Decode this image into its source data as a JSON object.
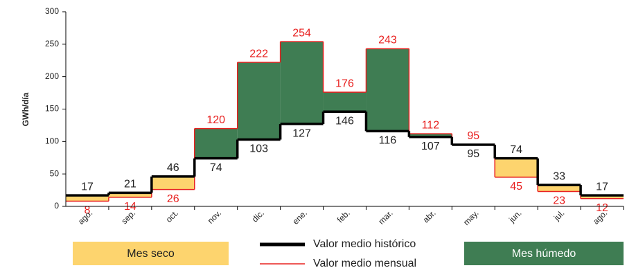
{
  "chart_data": {
    "type": "step",
    "y_label": "GWh/día",
    "categories": [
      "ago.",
      "sep.",
      "oct.",
      "nov.",
      "dic.",
      "ene.",
      "feb.",
      "mar.",
      "abr.",
      "may.",
      "jun.",
      "jul.",
      "ago."
    ],
    "series": [
      {
        "name": "Valor medio histórico",
        "color": "#000000",
        "values": [
          17,
          21,
          46,
          74,
          103,
          127,
          146,
          116,
          107,
          95,
          74,
          33,
          17
        ]
      },
      {
        "name": "Valor medio mensual",
        "color": "#e8201f",
        "values": [
          8,
          14,
          26,
          120,
          222,
          254,
          176,
          243,
          112,
          95,
          45,
          23,
          12
        ]
      }
    ],
    "fills": [
      {
        "label": "Mes seco",
        "color": "#fdd46e"
      },
      {
        "label": "Mes húmedo",
        "color": "#3f7d53"
      }
    ],
    "ylim": [
      0,
      300
    ],
    "yticks": [
      0,
      50,
      100,
      150,
      200,
      250,
      300
    ],
    "grid": false
  }
}
